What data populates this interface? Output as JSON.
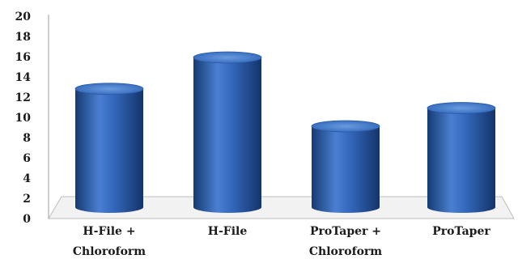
{
  "chart_data": {
    "type": "bar",
    "style": "3d-cylinder",
    "categories": [
      [
        "H-File +",
        "Chloroform"
      ],
      [
        "H-File"
      ],
      [
        "ProTaper +",
        "Chloroform"
      ],
      [
        "ProTaper"
      ]
    ],
    "values": [
      13.7,
      16.8,
      10.0,
      11.8
    ],
    "yticks": [
      "0",
      "2",
      "4",
      "6",
      "8",
      "10",
      "12",
      "14",
      "16",
      "18",
      "20"
    ],
    "ylim": [
      0,
      20
    ],
    "grid": false,
    "bar_color": "#2f66b8",
    "bar_light": "#6a9be0",
    "bar_dark": "#163a73",
    "floor_color": "#f2f2f2"
  }
}
